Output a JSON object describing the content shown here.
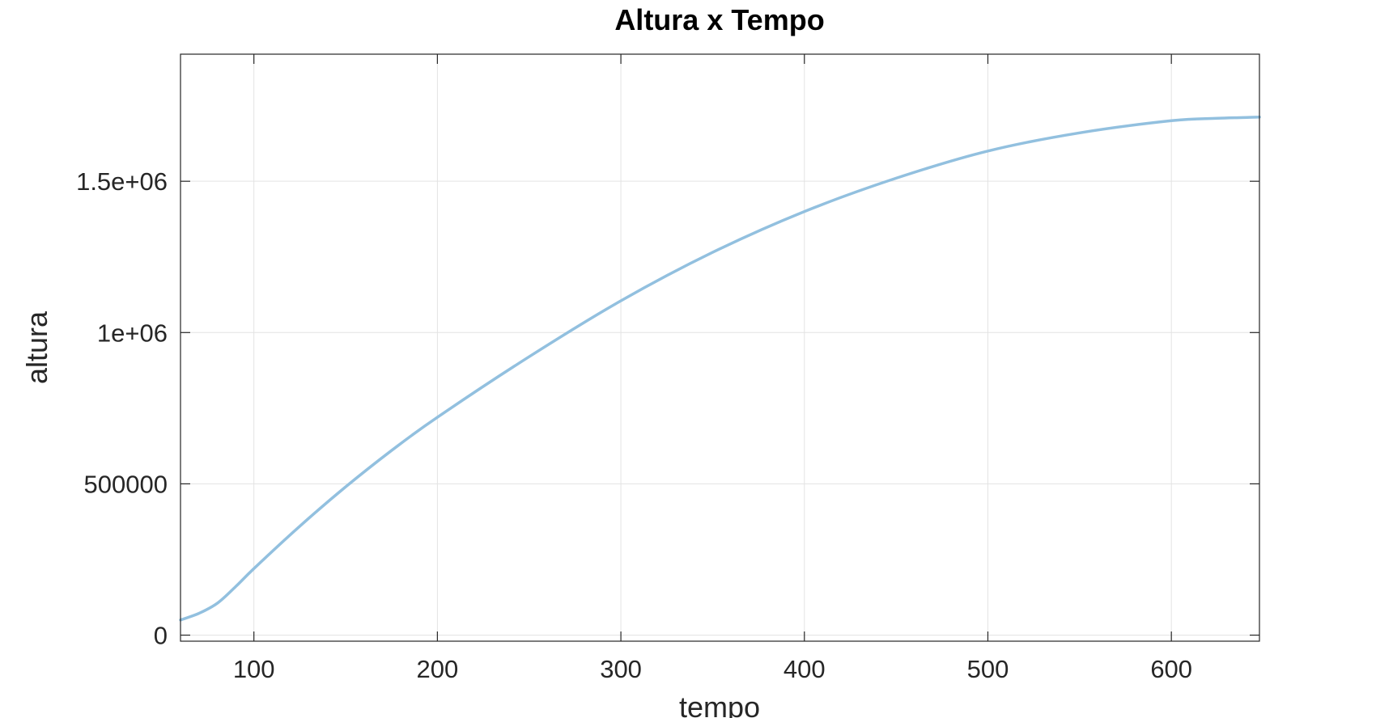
{
  "chart_data": {
    "type": "line",
    "title": "Altura x Tempo",
    "xlabel": "tempo",
    "ylabel": "altura",
    "xlim": [
      60,
      648
    ],
    "ylim": [
      -20000,
      1920000
    ],
    "xticks": [
      100,
      200,
      300,
      400,
      500,
      600
    ],
    "xtick_labels": [
      "100",
      "200",
      "300",
      "400",
      "500",
      "600"
    ],
    "yticks": [
      0,
      500000,
      1000000,
      1500000
    ],
    "ytick_labels": [
      "0",
      "500000",
      "1e+06",
      "1.5e+06"
    ],
    "grid": true,
    "line_color": "#92c0df",
    "series": [
      {
        "x": [
          60,
          70,
          80,
          90,
          100,
          125,
          150,
          175,
          200,
          250,
          300,
          350,
          400,
          450,
          500,
          550,
          600,
          625,
          648
        ],
        "y": [
          50000,
          72000,
          105000,
          160000,
          220000,
          360000,
          490000,
          610000,
          720000,
          920000,
          1105000,
          1265000,
          1400000,
          1510000,
          1600000,
          1660000,
          1700000,
          1708000,
          1712000
        ]
      }
    ]
  }
}
